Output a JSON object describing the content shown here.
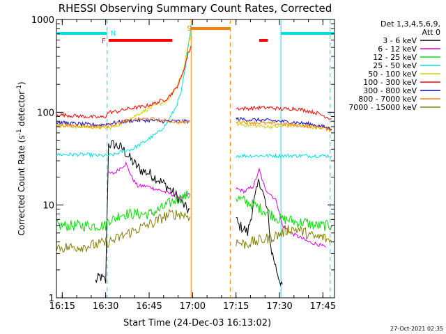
{
  "chart_data": {
    "type": "line",
    "title": "RHESSI Observing Summary Count Rates, Corrected",
    "xlabel": "Start Time (24-Dec-03 16:13:02)",
    "ylabel_main": "Corrected Count Rate (s",
    "ylabel_sup1": "-1",
    "ylabel_mid": " detector",
    "ylabel_sup2": "-1",
    "ylabel_end": ")",
    "footer": "27-Oct-2021 02:35",
    "xlim_minutes": [
      0,
      96
    ],
    "ylim": [
      1,
      1000
    ],
    "yscale": "log",
    "x_ticks": [
      {
        "m": 2,
        "label": "16:15"
      },
      {
        "m": 17,
        "label": "16:30"
      },
      {
        "m": 32,
        "label": "16:45"
      },
      {
        "m": 47,
        "label": "17:00"
      },
      {
        "m": 62,
        "label": "17:15"
      },
      {
        "m": 77,
        "label": "17:30"
      },
      {
        "m": 92,
        "label": "17:45"
      }
    ],
    "y_ticks": [
      {
        "v": 1,
        "label": "1"
      },
      {
        "v": 10,
        "label": "10"
      },
      {
        "v": 100,
        "label": "100"
      },
      {
        "v": 1000,
        "label": "1000"
      }
    ],
    "legend": {
      "header": [
        "Det 1,3,4,5,6,9,",
        "Att 0"
      ],
      "items": [
        {
          "label": "3 - 6 keV",
          "color": "#000000"
        },
        {
          "label": "6 - 12 keV",
          "color": "#e000e0"
        },
        {
          "label": "12 - 25 keV",
          "color": "#00e000"
        },
        {
          "label": "25 - 50 keV",
          "color": "#00e0e0"
        },
        {
          "label": "50 - 100 keV",
          "color": "#d8d000"
        },
        {
          "label": "100 - 300 keV",
          "color": "#ff0000"
        },
        {
          "label": "300 - 800 keV",
          "color": "#0000e0"
        },
        {
          "label": "800 - 7000 keV",
          "color": "#ff8000"
        },
        {
          "label": "7000 - 15000 keV",
          "color": "#808000"
        }
      ]
    },
    "flags": [
      {
        "label": "N",
        "color": "#00e0e0",
        "type": "night",
        "segments": [
          [
            0,
            17.5
          ],
          [
            77.5,
            96
          ]
        ]
      },
      {
        "label": "F",
        "color": "#ff0000",
        "type": "flare",
        "segments": [
          [
            18,
            40
          ],
          [
            70,
            73
          ]
        ]
      },
      {
        "label": "S",
        "color": "#ff8000",
        "type": "saa",
        "segments": [
          [
            46.5,
            60
          ]
        ]
      }
    ],
    "vlines": [
      {
        "m": 17.5,
        "color": "#00e0e0",
        "style": "dashed"
      },
      {
        "m": 46.5,
        "color": "#ff8000",
        "style": "solid"
      },
      {
        "m": 60,
        "color": "#ff8000",
        "style": "dashed"
      },
      {
        "m": 77.5,
        "color": "#00e0e0",
        "style": "solid"
      },
      {
        "m": 94.5,
        "color": "#00e0e0",
        "style": "dashed"
      }
    ],
    "gap_minutes": [
      46.5,
      61.5
    ],
    "series": [
      {
        "name": "3 - 6 keV",
        "color": "#000000",
        "x": [
          13.5,
          15,
          17,
          18,
          20,
          23,
          26,
          29,
          32,
          35,
          38,
          41,
          43,
          45,
          46,
          62,
          63,
          65,
          66,
          68,
          70,
          72,
          73,
          74,
          76,
          77,
          78
        ],
        "y": [
          1.5,
          1.7,
          1.5,
          45,
          45,
          40,
          30,
          24,
          22,
          19,
          16,
          13,
          11,
          9,
          9,
          7,
          6,
          5.5,
          5,
          10,
          19,
          11,
          8,
          3.5,
          2,
          1.6,
          1.4
        ]
      },
      {
        "name": "6 - 12 keV",
        "color": "#e000e0",
        "x": [
          18,
          20,
          22,
          24,
          26,
          28,
          31,
          34,
          37,
          40,
          43,
          46,
          62,
          65,
          68,
          70,
          72,
          74,
          76,
          78,
          81,
          84,
          87,
          90,
          93
        ],
        "y": [
          22,
          22,
          25,
          28,
          20,
          16,
          16,
          15,
          14,
          13,
          12,
          13,
          15,
          14,
          16,
          24,
          15,
          13,
          11,
          6,
          5,
          4.5,
          4,
          3.8,
          3.5
        ]
      },
      {
        "name": "12 - 25 keV",
        "color": "#00e000",
        "x": [
          0,
          5,
          10,
          15,
          17,
          18,
          20,
          22,
          25,
          28,
          32,
          36,
          40,
          43,
          46,
          62,
          65,
          68,
          71,
          74,
          77,
          80,
          83,
          86,
          89,
          92,
          95
        ],
        "y": [
          6,
          6,
          6,
          6,
          6,
          7,
          7,
          8,
          8,
          8,
          8,
          9,
          11,
          12,
          13,
          12,
          11,
          10,
          9,
          8,
          7,
          7,
          6.5,
          6.5,
          6,
          6,
          6
        ]
      },
      {
        "name": "25 - 50 keV",
        "color": "#00e0e0",
        "x": [
          0,
          5,
          10,
          15,
          17,
          20,
          23,
          26,
          29,
          32,
          35,
          38,
          41,
          43,
          44.5,
          45.5,
          46.5,
          62,
          67,
          72,
          77,
          82,
          87,
          92,
          95
        ],
        "y": [
          35,
          35,
          35,
          34,
          34,
          35,
          38,
          40,
          45,
          52,
          60,
          75,
          110,
          160,
          300,
          500,
          900,
          34,
          34,
          34,
          34,
          34,
          34,
          34,
          34
        ]
      },
      {
        "name": "50 - 100 keV",
        "color": "#d8d000",
        "x": [
          0,
          5,
          10,
          15,
          18,
          20,
          24,
          28,
          32,
          36,
          39,
          42,
          44,
          45,
          46,
          46.5,
          62,
          67,
          72,
          77,
          82,
          87,
          92,
          95
        ],
        "y": [
          72,
          70,
          70,
          68,
          68,
          70,
          80,
          95,
          110,
          125,
          140,
          200,
          300,
          450,
          600,
          750,
          75,
          72,
          70,
          70,
          72,
          70,
          68,
          65
        ]
      },
      {
        "name": "100 - 300 keV",
        "color": "#ff0000",
        "x": [
          0,
          5,
          10,
          15,
          17,
          18,
          21,
          24,
          27,
          30,
          34,
          38,
          41,
          43,
          44.5,
          45.5,
          46.5,
          62,
          66,
          70,
          74,
          78,
          82,
          86,
          90,
          95
        ],
        "y": [
          95,
          92,
          90,
          88,
          90,
          100,
          102,
          108,
          112,
          115,
          125,
          140,
          175,
          230,
          330,
          430,
          520,
          110,
          110,
          112,
          112,
          108,
          110,
          105,
          98,
          85
        ]
      },
      {
        "name": "300 - 800 keV",
        "color": "#0000e0",
        "x": [
          0,
          5,
          10,
          15,
          18,
          21,
          24,
          28,
          32,
          36,
          40,
          43,
          46,
          62,
          67,
          72,
          77,
          82,
          87,
          92,
          95
        ],
        "y": [
          78,
          76,
          74,
          73,
          75,
          78,
          80,
          82,
          82,
          80,
          80,
          80,
          80,
          85,
          83,
          82,
          80,
          78,
          75,
          70,
          66
        ]
      },
      {
        "name": "800 - 7000 keV",
        "color": "#ff8000",
        "x": [
          0,
          5,
          10,
          15,
          18,
          21,
          24,
          28,
          32,
          36,
          40,
          43,
          46,
          62,
          67,
          72,
          77,
          82,
          87,
          92,
          95
        ],
        "y": [
          73,
          72,
          71,
          70,
          72,
          76,
          80,
          84,
          85,
          82,
          80,
          78,
          78,
          80,
          78,
          76,
          75,
          73,
          71,
          68,
          64
        ]
      },
      {
        "name": "7000 - 15000 keV",
        "color": "#808000",
        "x": [
          0,
          5,
          10,
          15,
          18,
          20,
          22,
          25,
          28,
          31,
          34,
          37,
          40,
          43,
          46,
          62,
          65,
          68,
          71,
          74,
          77,
          80,
          83,
          86,
          89,
          92,
          95
        ],
        "y": [
          3.5,
          3.5,
          3.6,
          3.8,
          4,
          4.2,
          4.5,
          5,
          5.5,
          6,
          6.5,
          7.5,
          8,
          8,
          7.5,
          4,
          3.8,
          4,
          4.2,
          4.5,
          4.8,
          5.5,
          5.5,
          5,
          4.5,
          4.5,
          4
        ]
      }
    ]
  }
}
